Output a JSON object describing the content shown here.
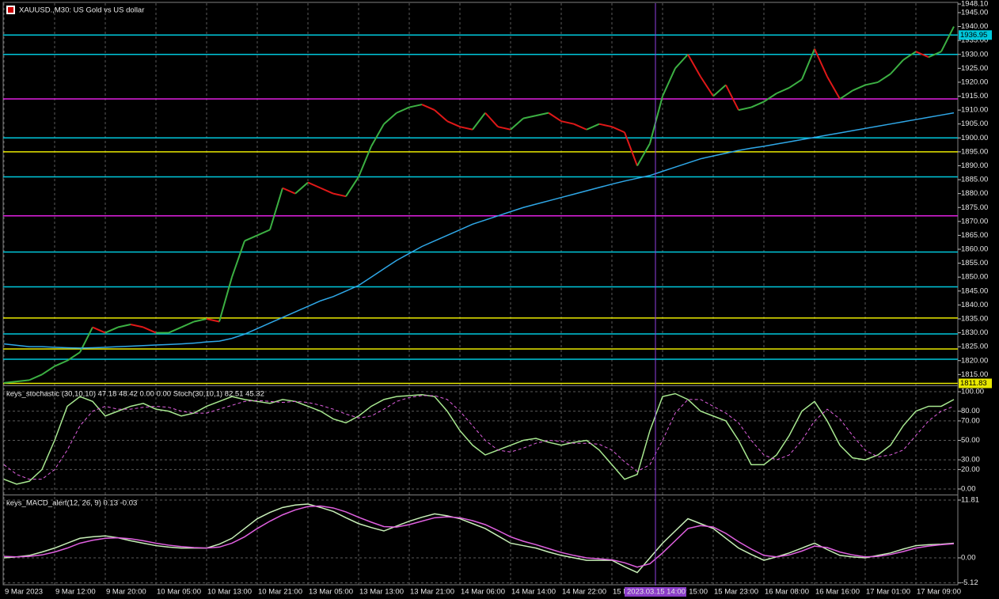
{
  "chart_data": [
    {
      "type": "line",
      "title": "XAUUSD.,M30: US Gold vs US dollar",
      "crosshair_label": "2023.03.15 14:00",
      "categories": [
        "9 Mar 2023",
        null,
        null,
        null,
        "9 Mar 12:00",
        null,
        null,
        null,
        "9 Mar 20:00",
        null,
        null,
        null,
        "10 Mar 05:00",
        null,
        null,
        null,
        "10 Mar 13:00",
        null,
        null,
        null,
        "10 Mar 21:00",
        null,
        null,
        null,
        "13 Mar 05:00",
        null,
        null,
        null,
        "13 Mar 13:00",
        null,
        null,
        null,
        "13 Mar 21:00",
        null,
        null,
        null,
        "14 Mar 06:00",
        null,
        null,
        null,
        "14 Mar 14:00",
        null,
        null,
        null,
        "14 Mar 22:00",
        null,
        null,
        null,
        "15 M",
        null,
        null,
        null,
        "15 Mar 15:00",
        null,
        null,
        null,
        "15 Mar 23:00",
        null,
        null,
        null,
        "16 Mar 08:00",
        null,
        null,
        null,
        "16 Mar 16:00",
        null,
        null,
        null,
        "17 Mar 01:00",
        null,
        null,
        null,
        "17 Mar 09:00",
        null,
        null,
        null
      ],
      "series": [
        {
          "color": "#3cb043",
          "down_color": "#e01818",
          "values": [
            1812,
            1812.5,
            1813,
            1815,
            1818,
            1820,
            1823,
            1832,
            1830,
            1832,
            1833,
            1832,
            1830,
            1830,
            1832,
            1834,
            1835,
            1834,
            1850,
            1863,
            1865,
            1867,
            1882,
            1880,
            1884,
            1882,
            1880,
            1879,
            1886,
            1897,
            1905,
            1909,
            1911,
            1912,
            1910,
            1906,
            1904,
            1903,
            1909,
            1904,
            1903,
            1907,
            1908,
            1909,
            1906,
            1905,
            1903,
            1905,
            1904,
            1902,
            1890,
            1898,
            1915,
            1925,
            1930,
            1922,
            1915,
            1919,
            1910,
            1911,
            1913,
            1916,
            1918,
            1921,
            1932,
            1922,
            1914,
            1917,
            1919,
            1920,
            1923,
            1928,
            1931,
            1929,
            1931,
            1940
          ]
        },
        {
          "color": "#2fa8e8",
          "values": [
            1826,
            1825.5,
            1825,
            1825,
            1824.8,
            1824.6,
            1824.5,
            1824.6,
            1824.8,
            1825,
            1825.2,
            1825.4,
            1825.6,
            1825.8,
            1826,
            1826.3,
            1826.7,
            1827,
            1828,
            1829.5,
            1831.5,
            1833.5,
            1835.5,
            1837.5,
            1839.5,
            1841.5,
            1843,
            1845,
            1847,
            1850,
            1853,
            1856,
            1858.5,
            1861,
            1863,
            1865,
            1867,
            1869,
            1870.5,
            1872,
            1873.5,
            1875,
            1876.2,
            1877.4,
            1878.6,
            1879.8,
            1881,
            1882.2,
            1883.4,
            1884.5,
            1885.5,
            1886.5,
            1888,
            1889.5,
            1891,
            1892.5,
            1893.5,
            1894.5,
            1895.5,
            1896.3,
            1897,
            1897.8,
            1898.6,
            1899.4,
            1900.2,
            1901,
            1901.8,
            1902.6,
            1903.4,
            1904.2,
            1905,
            1905.8,
            1906.6,
            1907.4,
            1908.2,
            1909
          ]
        }
      ],
      "levels": [
        {
          "value": 1936.95,
          "color": "#00c8dc",
          "label": "1936.95"
        },
        {
          "value": 1930,
          "color": "#00c8dc"
        },
        {
          "value": 1914,
          "color": "#e020e0"
        },
        {
          "value": 1900,
          "color": "#00c8dc"
        },
        {
          "value": 1895,
          "color": "#e8e800"
        },
        {
          "value": 1886,
          "color": "#00c8dc"
        },
        {
          "value": 1872,
          "color": "#e020e0"
        },
        {
          "value": 1859,
          "color": "#00c8dc"
        },
        {
          "value": 1846.5,
          "color": "#00c8dc"
        },
        {
          "value": 1835.3,
          "color": "#e8e800"
        },
        {
          "value": 1829.6,
          "color": "#00c8dc"
        },
        {
          "value": 1824.2,
          "color": "#e8e800"
        },
        {
          "value": 1820.5,
          "color": "#00c8dc"
        },
        {
          "value": 1811.83,
          "color": "#e8e800",
          "label": "1811.83"
        }
      ],
      "ylim": [
        1811.4,
        1948.4
      ],
      "yticks": [
        {
          "value": 1815,
          "label": "1815.00"
        },
        {
          "value": 1820,
          "label": "1820.00"
        },
        {
          "value": 1825,
          "label": "1825.00"
        },
        {
          "value": 1830,
          "label": "1830.00"
        },
        {
          "value": 1835,
          "label": "1835.00"
        },
        {
          "value": 1840,
          "label": "1840.00"
        },
        {
          "value": 1845,
          "label": "1845.00"
        },
        {
          "value": 1850,
          "label": "1850.00"
        },
        {
          "value": 1855,
          "label": "1855.00"
        },
        {
          "value": 1860,
          "label": "1860.00"
        },
        {
          "value": 1865,
          "label": "1865.00"
        },
        {
          "value": 1870,
          "label": "1870.00"
        },
        {
          "value": 1875,
          "label": "1875.00"
        },
        {
          "value": 1880,
          "label": "1880.00"
        },
        {
          "value": 1885,
          "label": "1885.00"
        },
        {
          "value": 1890,
          "label": "1890.00"
        },
        {
          "value": 1895,
          "label": "1895.00"
        },
        {
          "value": 1900,
          "label": "1900.00"
        },
        {
          "value": 1905,
          "label": "1905.00"
        },
        {
          "value": 1910,
          "label": "1910.00"
        },
        {
          "value": 1915,
          "label": "1915.00"
        },
        {
          "value": 1920,
          "label": "1920.00"
        },
        {
          "value": 1925,
          "label": "1925.00"
        },
        {
          "value": 1930,
          "label": "1930.00"
        },
        {
          "value": 1935,
          "label": "1935.00"
        },
        {
          "value": 1940,
          "label": "1940.00"
        },
        {
          "value": 1945,
          "label": "1945.00"
        },
        {
          "value": 1948.1,
          "label": "1948.10"
        }
      ],
      "grid": false
    },
    {
      "type": "line",
      "title": "keys_stochastic (30,10,10) 47.18 48.42 0.00 0.00 Stoch(30,10,1) 82.51 45.32",
      "series": [
        {
          "color": "#a8e890",
          "values": [
            10,
            5,
            8,
            20,
            50,
            85,
            95,
            90,
            75,
            80,
            85,
            88,
            82,
            80,
            75,
            78,
            85,
            90,
            95,
            92,
            90,
            88,
            92,
            90,
            85,
            80,
            72,
            68,
            75,
            85,
            92,
            95,
            96,
            97,
            95,
            80,
            60,
            45,
            35,
            40,
            45,
            50,
            52,
            48,
            45,
            48,
            50,
            40,
            25,
            10,
            15,
            60,
            95,
            98,
            92,
            80,
            75,
            70,
            50,
            25,
            25,
            35,
            55,
            80,
            90,
            70,
            45,
            32,
            30,
            35,
            45,
            65,
            80,
            85,
            85,
            92
          ]
        },
        {
          "color": "#e060e0",
          "dashed": true,
          "values": [
            25,
            15,
            10,
            10,
            20,
            40,
            65,
            80,
            85,
            82,
            82,
            84,
            85,
            84,
            80,
            78,
            78,
            82,
            86,
            90,
            91,
            90,
            89,
            90,
            89,
            86,
            82,
            77,
            73,
            75,
            82,
            90,
            94,
            96,
            96,
            92,
            80,
            65,
            50,
            40,
            38,
            42,
            47,
            50,
            49,
            47,
            47,
            46,
            40,
            28,
            18,
            25,
            50,
            78,
            92,
            92,
            85,
            78,
            68,
            50,
            35,
            30,
            35,
            50,
            70,
            82,
            72,
            55,
            40,
            33,
            35,
            40,
            55,
            70,
            80,
            85
          ]
        }
      ],
      "ylim": [
        -4.9,
        104.9
      ],
      "yticks": [
        {
          "value": 100,
          "label": "100.00"
        },
        {
          "value": 80,
          "label": "80.00"
        },
        {
          "value": 70,
          "label": "70.00"
        },
        {
          "value": 50,
          "label": "50.00"
        },
        {
          "value": 30,
          "label": "30.00"
        },
        {
          "value": 20,
          "label": "20.00"
        },
        {
          "value": 0,
          "label": "0.00"
        }
      ],
      "grid": true
    },
    {
      "type": "line",
      "title": "keys_MACD_alert(12, 26, 9) 0.13 -0.03",
      "series": [
        {
          "color": "#c8f0b8",
          "values": [
            0,
            0.2,
            0.5,
            1.2,
            2,
            3,
            4,
            4.3,
            4.5,
            4.1,
            3.5,
            3,
            2.5,
            2.2,
            2,
            2,
            2,
            2.8,
            4,
            6,
            8,
            9.3,
            10.3,
            10.8,
            11,
            10.3,
            9.5,
            8.2,
            7,
            6.2,
            5.5,
            6.5,
            7.5,
            8.3,
            9,
            8.6,
            8,
            7,
            6,
            4.5,
            3,
            2.5,
            2,
            1.2,
            0.5,
            0,
            -0.5,
            -0.5,
            -0.5,
            -1.8,
            -3,
            0,
            3,
            5.5,
            8,
            7,
            6,
            4,
            2,
            0.7,
            -0.5,
            0.2,
            1,
            2,
            3,
            1.7,
            0.5,
            0.2,
            0,
            0.5,
            1,
            1.8,
            2.5,
            2.7,
            2.8,
            3
          ]
        },
        {
          "color": "#e060e0",
          "values": [
            0.3,
            0.2,
            0.3,
            0.6,
            1.2,
            2,
            3,
            3.6,
            4,
            4.1,
            3.9,
            3.5,
            3,
            2.6,
            2.3,
            2.1,
            2,
            2.2,
            3,
            4.3,
            6,
            7.5,
            8.8,
            9.8,
            10.5,
            10.6,
            10.2,
            9.4,
            8.3,
            7.3,
            6.4,
            6.3,
            6.8,
            7.5,
            8.2,
            8.4,
            8.2,
            7.6,
            6.8,
            5.6,
            4.3,
            3.4,
            2.7,
            1.9,
            1.1,
            0.5,
            0,
            -0.2,
            -0.4,
            -1,
            -1.9,
            -1.2,
            1,
            3.5,
            6,
            6.6,
            6.3,
            5,
            3.3,
            1.8,
            0.5,
            0.2,
            0.6,
            1.4,
            2.4,
            2.1,
            1.2,
            0.6,
            0.2,
            0.3,
            0.7,
            1.3,
            2,
            2.4,
            2.7,
            2.9
          ]
        }
      ],
      "ylim": [
        -5.66,
        12.62
      ],
      "yticks": [
        11.81,
        {
          "value": 0,
          "label": "0.00"
        },
        -5.12
      ],
      "grid": true
    }
  ]
}
